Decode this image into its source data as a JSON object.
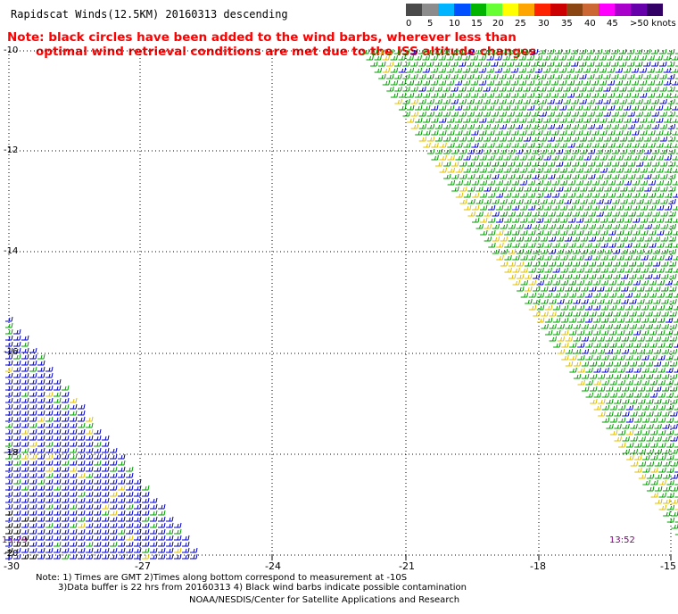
{
  "title": "Rapidscat Winds(12.5KM) 20160313 descending",
  "note": {
    "line1": "Note: black circles have been added to the wind barbs, wherever less than",
    "line2": "optimal wind retrieval conditions are met due to the ISS altitude changes"
  },
  "legend": {
    "labels": [
      "0",
      "5",
      "10",
      "15",
      "20",
      "25",
      "30",
      "35",
      "40",
      "45",
      ">50 knots"
    ],
    "colors": [
      "#4a4a4a",
      "#8c8c8c",
      "#00b4ff",
      "#0050ff",
      "#00b400",
      "#66ff33",
      "#ffff00",
      "#ffa500",
      "#ff2200",
      "#cc0000",
      "#8b4513",
      "#cc6633",
      "#ff00ff",
      "#aa00cc",
      "#6600aa",
      "#330066"
    ]
  },
  "axes": {
    "y_ticks": [
      "-10",
      "-12",
      "-14",
      "-16",
      "-18",
      "-20"
    ],
    "x_ticks": [
      "-30",
      "-27",
      "-24",
      "-21",
      "-18",
      "-15"
    ]
  },
  "time_labels": {
    "left": "15:29",
    "right": "13:52"
  },
  "footer": {
    "line1": "Note: 1) Times are GMT 2)Times along bottom correspond to measurement at -10S",
    "line2": "3)Data buffer is 22 hrs from 20160313 4) Black wind barbs indicate possible contamination",
    "line3": "NOAA/NESDIS/Center for Satellite Applications and Research"
  },
  "colors": {
    "barb_green": "#00a000",
    "barb_blue": "#0000cc",
    "barb_yellow": "#e0c000",
    "barb_orange": "#e08000",
    "barb_black": "#000000",
    "grid": "#000000"
  }
}
